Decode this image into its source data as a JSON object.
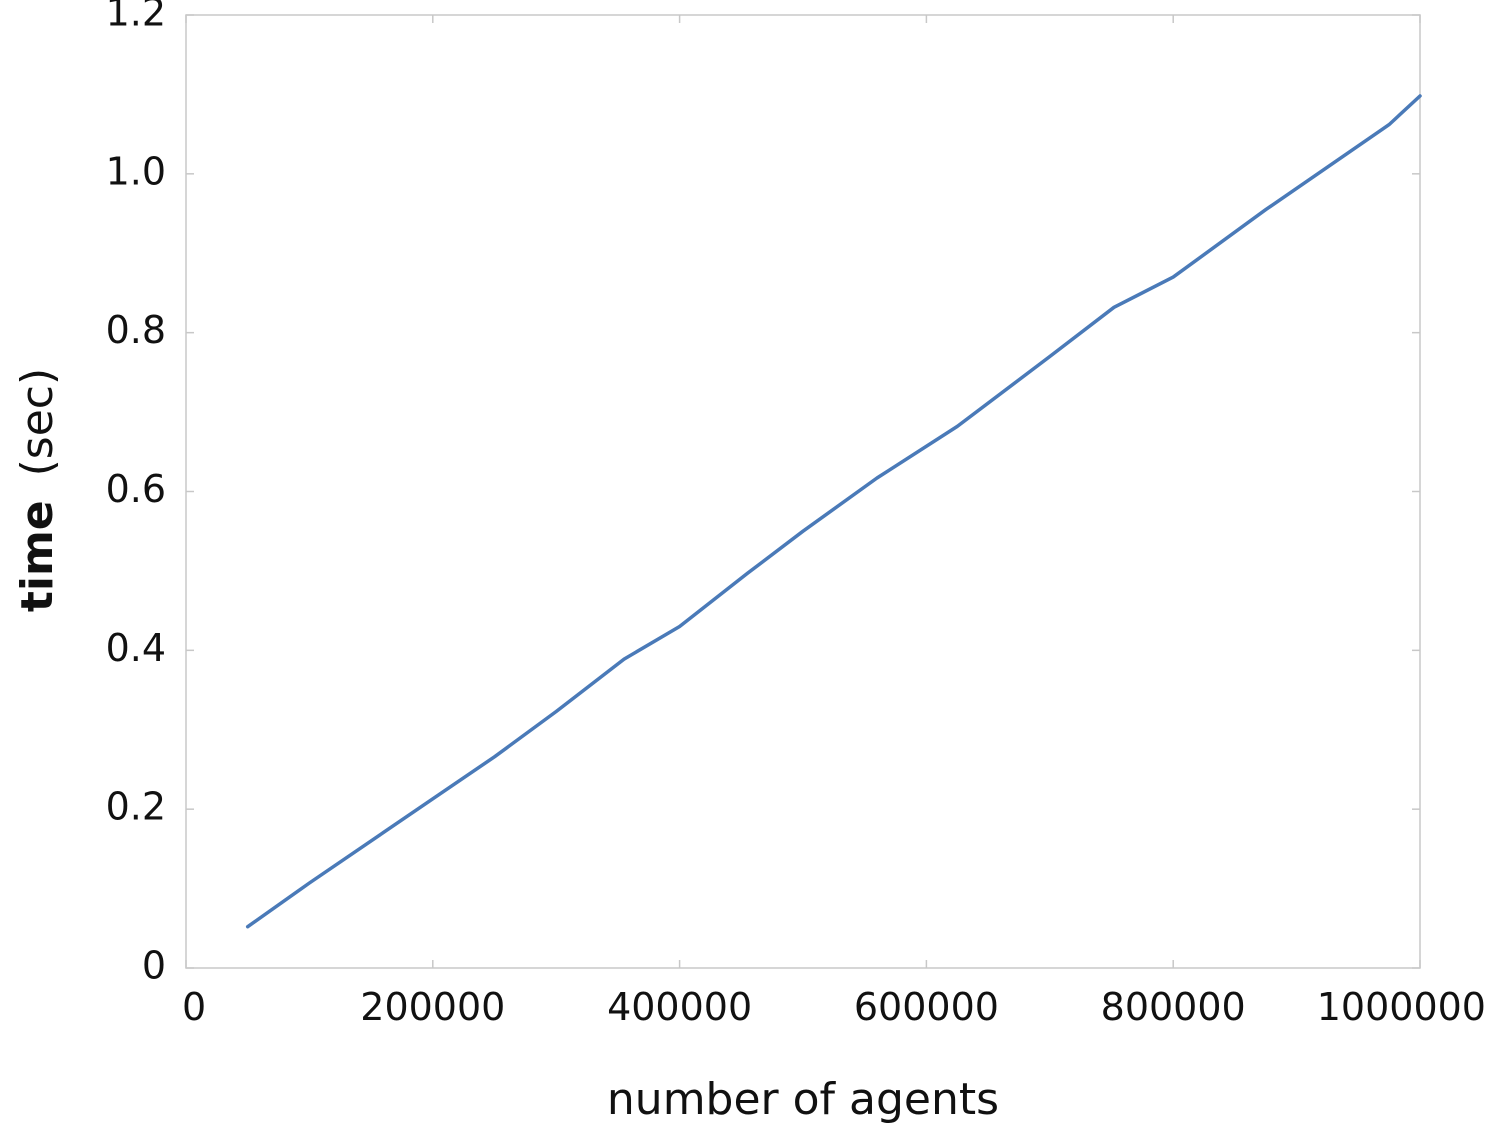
{
  "chart_data": {
    "type": "line",
    "xlabel": "number of agents",
    "ylabel_main": "time",
    "ylabel_unit": "(sec)",
    "xlim": [
      0,
      1000000
    ],
    "ylim": [
      0,
      1.2
    ],
    "xticks": [
      {
        "value": 0,
        "label": "0"
      },
      {
        "value": 200000,
        "label": "200000"
      },
      {
        "value": 400000,
        "label": "400000"
      },
      {
        "value": 600000,
        "label": "600000"
      },
      {
        "value": 800000,
        "label": "800000"
      },
      {
        "value": 1000000,
        "label": "1000000"
      }
    ],
    "yticks": [
      {
        "value": 0,
        "label": "0"
      },
      {
        "value": 0.2,
        "label": "0.2"
      },
      {
        "value": 0.4,
        "label": "0.4"
      },
      {
        "value": 0.6,
        "label": "0.6"
      },
      {
        "value": 0.8,
        "label": "0.8"
      },
      {
        "value": 1.0,
        "label": "1.0"
      },
      {
        "value": 1.2,
        "label": "1.2"
      }
    ],
    "grid": false,
    "series": [
      {
        "color": "#4a7ab8",
        "x": [
          50000,
          100000,
          150000,
          200000,
          250000,
          300000,
          355000,
          400000,
          455000,
          500000,
          560000,
          625000,
          700000,
          752000,
          800000,
          875000,
          975000,
          1000000
        ],
        "y": [
          0.052,
          0.107,
          0.16,
          0.213,
          0.266,
          0.323,
          0.389,
          0.43,
          0.497,
          0.55,
          0.617,
          0.682,
          0.77,
          0.832,
          0.87,
          0.955,
          1.062,
          1.098
        ]
      }
    ]
  }
}
